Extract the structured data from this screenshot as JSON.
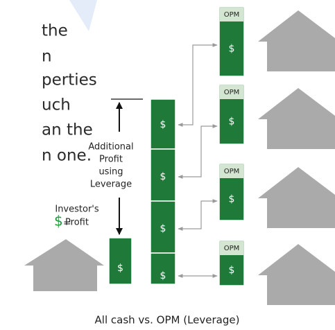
{
  "left_text": [
    "the",
    "n",
    "perties",
    "uch",
    "an the",
    "n one."
  ],
  "leverage_label": [
    "Additional",
    "Profit",
    "using",
    "Leverage"
  ],
  "legend": {
    "symbol": "$",
    "equals": "=",
    "text": [
      "Investor's",
      "Profit"
    ]
  },
  "all_cash": {
    "label": "$"
  },
  "leveraged_cells": [
    "$",
    "$",
    "$",
    "$"
  ],
  "opm_units": [
    {
      "tag": "OPM",
      "label": "$"
    },
    {
      "tag": "OPM",
      "label": "$"
    },
    {
      "tag": "OPM",
      "label": "$"
    },
    {
      "tag": "OPM",
      "label": "$"
    }
  ],
  "caption": "All cash vs. OPM (Leverage)"
}
